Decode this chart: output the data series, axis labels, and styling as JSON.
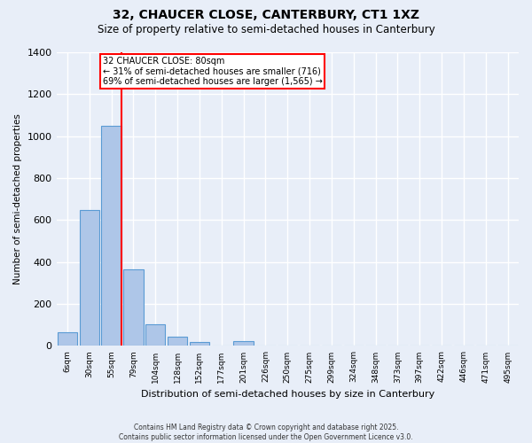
{
  "title1": "32, CHAUCER CLOSE, CANTERBURY, CT1 1XZ",
  "title2": "Size of property relative to semi-detached houses in Canterbury",
  "xlabel": "Distribution of semi-detached houses by size in Canterbury",
  "ylabel": "Number of semi-detached properties",
  "bar_labels": [
    "6sqm",
    "30sqm",
    "55sqm",
    "79sqm",
    "104sqm",
    "128sqm",
    "152sqm",
    "177sqm",
    "201sqm",
    "226sqm",
    "250sqm",
    "275sqm",
    "299sqm",
    "324sqm",
    "348sqm",
    "373sqm",
    "397sqm",
    "422sqm",
    "446sqm",
    "471sqm",
    "495sqm"
  ],
  "bar_heights": [
    65,
    650,
    1050,
    365,
    103,
    43,
    18,
    0,
    22,
    0,
    0,
    0,
    0,
    0,
    0,
    0,
    0,
    0,
    0,
    0,
    0
  ],
  "bar_color": "#aec6e8",
  "bar_edge_color": "#5a9bd4",
  "property_line_bar_index": 2,
  "property_size": "80sqm",
  "pct_smaller": 31,
  "pct_larger": 69,
  "n_smaller": 716,
  "n_larger": 1565,
  "annotation_label": "32 CHAUCER CLOSE: 80sqm",
  "ylim": [
    0,
    1400
  ],
  "yticks": [
    0,
    200,
    400,
    600,
    800,
    1000,
    1200,
    1400
  ],
  "background_color": "#e8eef8",
  "grid_color": "#ffffff",
  "footer1": "Contains HM Land Registry data © Crown copyright and database right 2025.",
  "footer2": "Contains public sector information licensed under the Open Government Licence v3.0."
}
